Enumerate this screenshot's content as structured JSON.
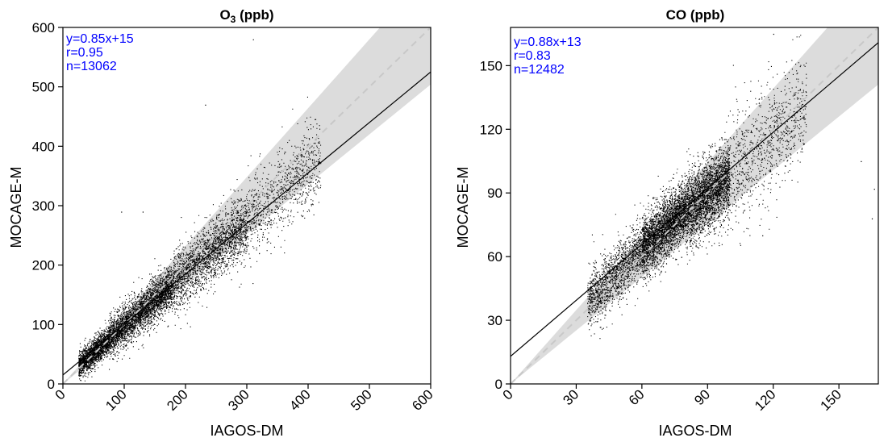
{
  "chart_data": [
    {
      "type": "scatter",
      "title": "O3 (ppb)",
      "title_main": "O",
      "title_sub": "3",
      "title_rest": " (ppb)",
      "xlabel": "IAGOS-DM",
      "ylabel": "MOCAGE-M",
      "xlim": [
        0,
        600
      ],
      "ylim": [
        0,
        600
      ],
      "xticks": [
        0,
        100,
        200,
        300,
        400,
        500,
        600
      ],
      "yticks": [
        0,
        100,
        200,
        300,
        400,
        500,
        600
      ],
      "fit": {
        "slope": 0.85,
        "intercept": 15
      },
      "stats": {
        "equation": "y=0.85x+15",
        "r": "r=0.95",
        "n": "n=13062"
      },
      "stats_color": "#0000ff",
      "one_to_one_color": "#c8c8c8",
      "band_color": "#dcdcdc",
      "point_color": "#000000",
      "cloud": [
        {
          "x_range": [
            25,
            75
          ],
          "y_mean_slope": 0.9,
          "y_mean_intercept": 8,
          "spread": 14,
          "count": 1800
        },
        {
          "x_range": [
            75,
            180
          ],
          "y_mean_slope": 0.88,
          "y_mean_intercept": 10,
          "spread": 22,
          "count": 3200
        },
        {
          "x_range": [
            180,
            300
          ],
          "y_mean_slope": 0.86,
          "y_mean_intercept": 14,
          "spread": 35,
          "count": 2200
        },
        {
          "x_range": [
            300,
            420
          ],
          "y_mean_slope": 0.86,
          "y_mean_intercept": 18,
          "spread": 45,
          "count": 900
        }
      ],
      "outliers": [
        [
          310,
          580
        ],
        [
          232,
          470
        ],
        [
          95,
          290
        ],
        [
          130,
          290
        ]
      ]
    },
    {
      "type": "scatter",
      "title": "CO (ppb)",
      "xlabel": "IAGOS-DM",
      "ylabel": "MOCAGE-M",
      "xlim": [
        0,
        168
      ],
      "ylim": [
        0,
        168
      ],
      "xticks": [
        0,
        30,
        60,
        90,
        120,
        150
      ],
      "yticks": [
        0,
        30,
        60,
        90,
        120,
        150
      ],
      "fit": {
        "slope": 0.88,
        "intercept": 13
      },
      "stats": {
        "equation": "y=0.88x+13",
        "r": "r=0.83",
        "n": "n=12482"
      },
      "stats_color": "#0000ff",
      "one_to_one_color": "#c8c8c8",
      "band_color": "#dcdcdc",
      "point_color": "#000000",
      "cloud": [
        {
          "x_range": [
            35,
            60
          ],
          "y_mean_slope": 0.95,
          "y_mean_intercept": 6,
          "spread": 9,
          "count": 1500
        },
        {
          "x_range": [
            60,
            80
          ],
          "y_mean_slope": 0.9,
          "y_mean_intercept": 10,
          "spread": 9,
          "count": 3000
        },
        {
          "x_range": [
            80,
            100
          ],
          "y_mean_slope": 0.85,
          "y_mean_intercept": 13,
          "spread": 11,
          "count": 2800
        },
        {
          "x_range": [
            100,
            135
          ],
          "y_mean_slope": 0.85,
          "y_mean_intercept": 15,
          "spread": 18,
          "count": 900
        }
      ],
      "outliers": [
        [
          120,
          165
        ],
        [
          165,
          78
        ],
        [
          160,
          105
        ],
        [
          166,
          92
        ],
        [
          115,
          70
        ]
      ]
    }
  ]
}
